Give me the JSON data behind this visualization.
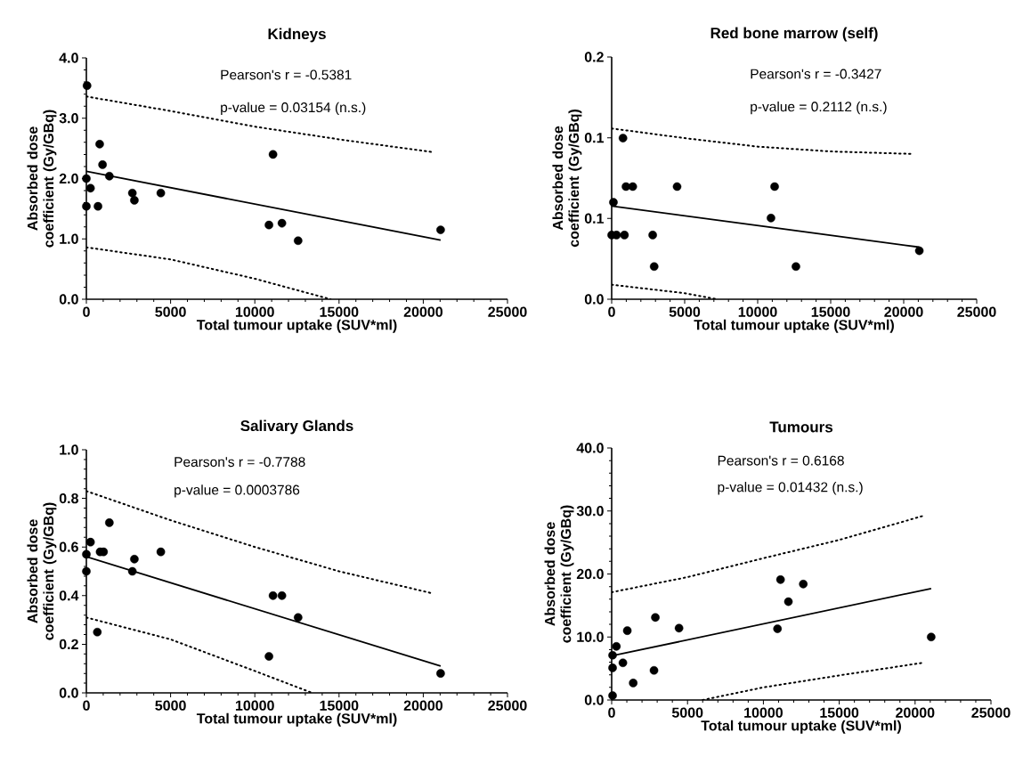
{
  "chart_data": [
    {
      "type": "scatter",
      "title": "Kidneys",
      "xlabel": "Total tumour uptake (SUV*ml)",
      "ylabel": "Absorbed dose coefficient (Gy/GBq)",
      "annotations": [
        "Pearson's r = -0.5381",
        "p-value = 0.03154  (n.s.)"
      ],
      "xlim": [
        0,
        25000
      ],
      "ylim": [
        0,
        4
      ],
      "xticks": [
        0,
        5000,
        10000,
        15000,
        20000,
        25000
      ],
      "yticks": [
        {
          "value": 0,
          "label": "0.0"
        },
        {
          "value": 1,
          "label": "1.0"
        },
        {
          "value": 2,
          "label": "2.0"
        },
        {
          "value": 3,
          "label": "3.0"
        },
        {
          "value": 4,
          "label": "4.0"
        }
      ],
      "series": [
        {
          "marker": "circle",
          "color": "#000000",
          "x": [
            40,
            0,
            245,
            0,
            690,
            790,
            960,
            1365,
            2730,
            2850,
            4420,
            11080,
            10840,
            11610,
            12570,
            21030
          ],
          "values": [
            3.54,
            2.0,
            1.84,
            1.54,
            1.54,
            2.57,
            2.23,
            2.04,
            1.76,
            1.64,
            1.76,
            2.4,
            1.23,
            1.26,
            0.97,
            1.15
          ]
        },
        {
          "type": "line",
          "color": "#000000",
          "line_style": "solid",
          "x": [
            0,
            21030
          ],
          "values": [
            2.12,
            0.98
          ]
        },
        {
          "type": "line",
          "color": "#000000",
          "line_style": "dotted",
          "x": [
            0,
            5000,
            10000,
            15000,
            20500
          ],
          "values": [
            3.36,
            3.12,
            2.86,
            2.65,
            2.44
          ]
        },
        {
          "type": "line",
          "color": "#000000",
          "line_style": "dotted",
          "x": [
            0,
            5000,
            10000,
            14500
          ],
          "values": [
            0.86,
            0.66,
            0.34,
            0
          ]
        }
      ]
    },
    {
      "type": "scatter",
      "title": "Red bone marrow (self)",
      "xlabel": "Total tumour uptake (SUV*ml)",
      "ylabel": "Absorbed dose coefficient (Gy/GBq)",
      "annotations": [
        "Pearson's r = -0.3427",
        "p-value = 0.2112  (n.s.)"
      ],
      "xlim": [
        0,
        25000
      ],
      "ylim": [
        0,
        0.2
      ],
      "xticks": [
        0,
        5000,
        10000,
        15000,
        20000,
        25000
      ],
      "yticks": [
        {
          "value": 0,
          "label": "0.0"
        },
        {
          "value": 0.0667,
          "label": "0.1"
        },
        {
          "value": 0.1333,
          "label": "0.1"
        },
        {
          "value": 0.2,
          "label": "0.2"
        }
      ],
      "series": [
        {
          "marker": "circle",
          "color": "#000000",
          "x": [
            775,
            120,
            0,
            330,
            875,
            980,
            1445,
            2810,
            2910,
            4480,
            10910,
            11160,
            12620,
            21070
          ],
          "values": [
            0.133,
            0.08,
            0.053,
            0.053,
            0.053,
            0.093,
            0.093,
            0.053,
            0.027,
            0.093,
            0.067,
            0.093,
            0.027,
            0.04
          ]
        },
        {
          "type": "line",
          "color": "#000000",
          "line_style": "solid",
          "x": [
            0,
            21070
          ],
          "values": [
            0.077,
            0.043
          ]
        },
        {
          "type": "line",
          "color": "#000000",
          "line_style": "dotted",
          "x": [
            0,
            5000,
            10000,
            15000,
            20500
          ],
          "values": [
            0.141,
            0.133,
            0.126,
            0.122,
            0.12
          ]
        },
        {
          "type": "line",
          "color": "#000000",
          "line_style": "dotted",
          "x": [
            0,
            5000,
            7200
          ],
          "values": [
            0.012,
            0.005,
            0
          ]
        }
      ]
    },
    {
      "type": "scatter",
      "title": "Salivary Glands",
      "xlabel": "Total tumour uptake (SUV*ml)",
      "ylabel": "Absorbed dose coefficient (Gy/GBq)",
      "annotations": [
        "Pearson's r = -0.7788",
        "p-value = 0.0003786"
      ],
      "xlim": [
        0,
        25000
      ],
      "ylim": [
        0,
        1
      ],
      "xticks": [
        0,
        5000,
        10000,
        15000,
        20000,
        25000
      ],
      "yticks": [
        {
          "value": 0,
          "label": "0.0"
        },
        {
          "value": 0.2,
          "label": "0.2"
        },
        {
          "value": 0.4,
          "label": "0.4"
        },
        {
          "value": 0.6,
          "label": "0.6"
        },
        {
          "value": 0.8,
          "label": "0.8"
        },
        {
          "value": 1,
          "label": "1.0"
        }
      ],
      "series": [
        {
          "marker": "circle",
          "color": "#000000",
          "x": [
            0,
            0,
            245,
            650,
            815,
            1020,
            1365,
            2730,
            2850,
            4420,
            10840,
            11080,
            11610,
            12570,
            21030
          ],
          "values": [
            0.57,
            0.5,
            0.62,
            0.25,
            0.58,
            0.58,
            0.7,
            0.5,
            0.55,
            0.58,
            0.15,
            0.4,
            0.4,
            0.31,
            0.08
          ]
        },
        {
          "type": "line",
          "color": "#000000",
          "line_style": "solid",
          "x": [
            0,
            21030
          ],
          "values": [
            0.56,
            0.11
          ]
        },
        {
          "type": "line",
          "color": "#000000",
          "line_style": "dotted",
          "x": [
            0,
            5000,
            10000,
            15000,
            20500
          ],
          "values": [
            0.83,
            0.71,
            0.6,
            0.5,
            0.41
          ]
        },
        {
          "type": "line",
          "color": "#000000",
          "line_style": "dotted",
          "x": [
            0,
            5000,
            10000,
            13400
          ],
          "values": [
            0.31,
            0.22,
            0.09,
            0
          ]
        }
      ]
    },
    {
      "type": "scatter",
      "title": "Tumours",
      "xlabel": "Total tumour uptake (SUV*ml)",
      "ylabel": "Absorbed dose coefficient (Gy/GBq)",
      "annotations": [
        "Pearson's r = 0.6168",
        "p-value = 0.01432  (n.s.)"
      ],
      "xlim": [
        0,
        25000
      ],
      "ylim": [
        0,
        40
      ],
      "xticks": [
        0,
        5000,
        10000,
        15000,
        20000,
        25000
      ],
      "yticks": [
        {
          "value": 0,
          "label": "0.0"
        },
        {
          "value": 10,
          "label": "10.0"
        },
        {
          "value": 20,
          "label": "20.0"
        },
        {
          "value": 30,
          "label": "30.0"
        },
        {
          "value": 40,
          "label": "40.0"
        }
      ],
      "series": [
        {
          "marker": "circle",
          "color": "#000000",
          "x": [
            60,
            60,
            60,
            310,
            740,
            1030,
            1420,
            2790,
            2880,
            4440,
            10930,
            11130,
            11650,
            12630,
            21060
          ],
          "values": [
            0.7,
            5.1,
            7.1,
            8.5,
            5.9,
            11.0,
            2.7,
            4.7,
            13.1,
            11.4,
            11.3,
            19.1,
            15.6,
            18.4,
            10.0
          ]
        },
        {
          "type": "line",
          "color": "#000000",
          "line_style": "solid",
          "x": [
            0,
            21060
          ],
          "values": [
            7.0,
            17.7
          ]
        },
        {
          "type": "line",
          "color": "#000000",
          "line_style": "dotted",
          "x": [
            0,
            5000,
            10000,
            15000,
            20500
          ],
          "values": [
            17.1,
            19.5,
            22.5,
            25.4,
            29.2
          ]
        },
        {
          "type": "line",
          "color": "#000000",
          "line_style": "dotted",
          "x": [
            6000,
            10000,
            15000,
            20500
          ],
          "values": [
            0,
            2.0,
            3.9,
            5.9
          ]
        }
      ]
    }
  ]
}
